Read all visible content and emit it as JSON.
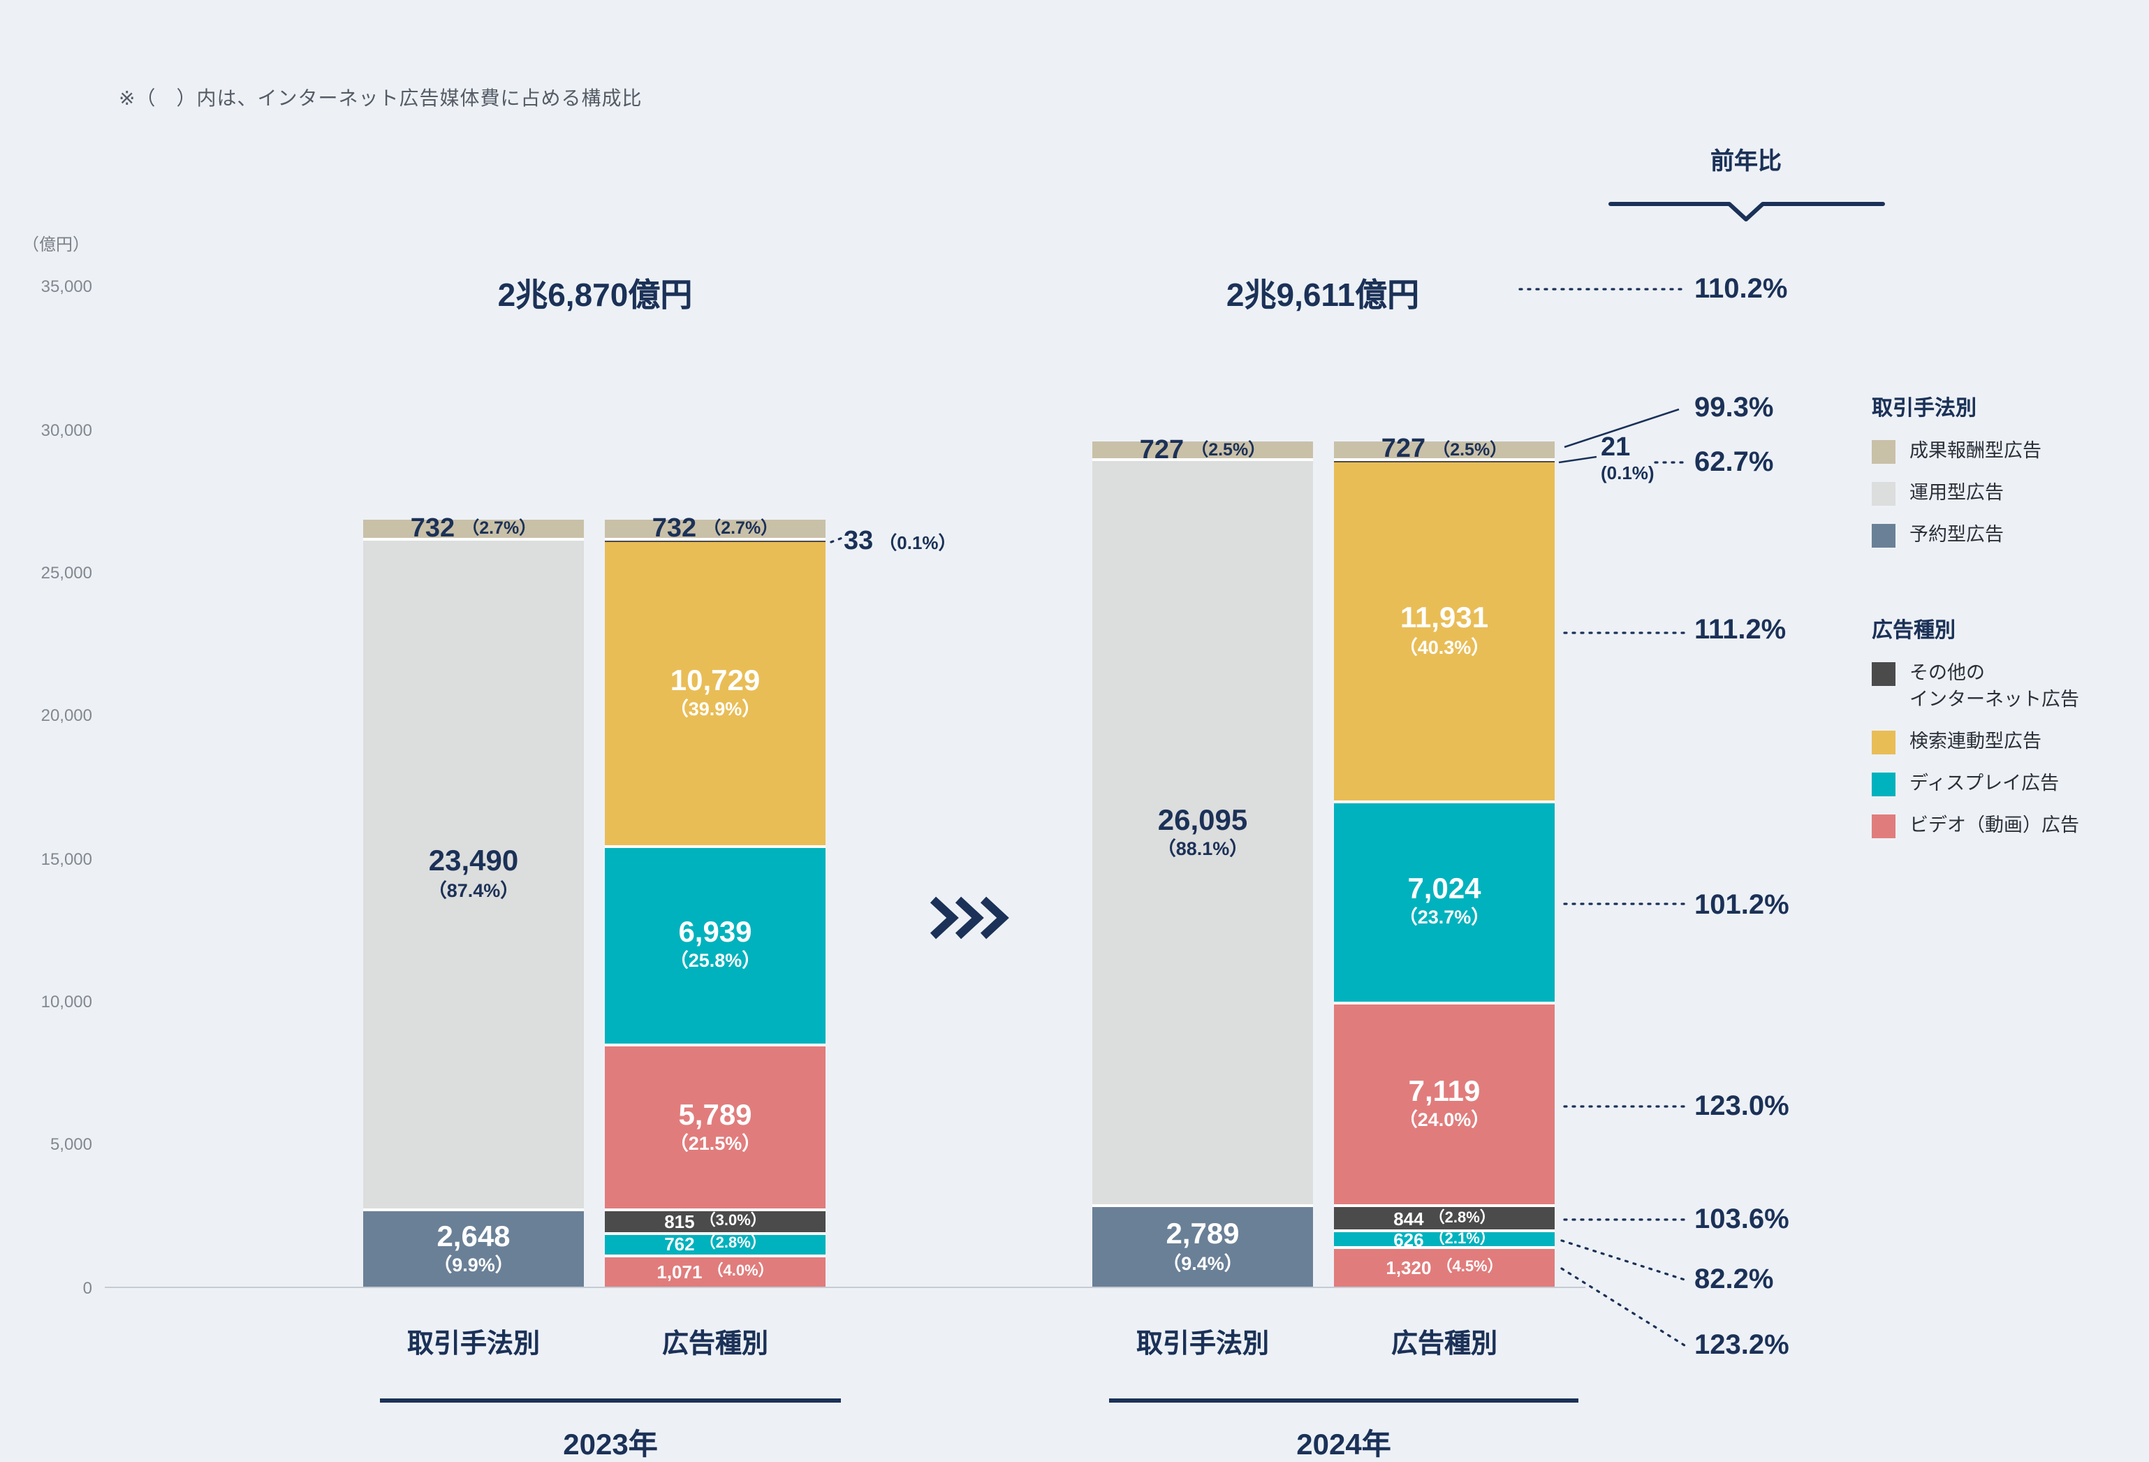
{
  "note": "※（　）内は、インターネット広告媒体費に占める構成比",
  "unit_label": "（億円）",
  "yoy_header": "前年比",
  "colors": {
    "background": "#edf1f6",
    "navy": "#1b3157",
    "performance_beige": "#c9c0a8",
    "programmatic_gray": "#dcdddd",
    "reserved_bluegray": "#6a8097",
    "other_darkgray": "#4b4b4b",
    "search_yellow": "#e9bd56",
    "display_teal": "#00b2bd",
    "video_red": "#e17c7c"
  },
  "chart_data": {
    "type": "bar",
    "stacked": true,
    "unit": "億円",
    "y_axis": {
      "max": 35000,
      "ticks": [
        35000,
        30000,
        25000,
        20000,
        15000,
        10000,
        5000,
        0
      ],
      "tick_labels": [
        "35,000",
        "30,000",
        "25,000",
        "20,000",
        "15,000",
        "10,000",
        "5,000",
        "0"
      ]
    },
    "groups": [
      {
        "year": "2023年",
        "total": 26870,
        "total_label": "2兆6,870億円",
        "bars": [
          {
            "label": "取引手法別",
            "segments": [
              {
                "key": "reserved-ads",
                "name": "予約型広告",
                "value": 2648,
                "value_label": "2,648",
                "share": "（9.9%）",
                "color": "reserved_bluegray",
                "text_color": "#ffffff",
                "style": "two-line"
              },
              {
                "key": "programmatic-ads",
                "name": "運用型広告",
                "value": 23490,
                "value_label": "23,490",
                "share": "（87.4%）",
                "color": "programmatic_gray",
                "text_color": "#1b3157",
                "style": "two-line"
              },
              {
                "key": "performance-ads",
                "name": "成果報酬型広告",
                "value": 732,
                "value_label": "732",
                "share": "（2.7%）",
                "color": "performance_beige",
                "text_color": "#1b3157",
                "style": "one-line"
              }
            ]
          },
          {
            "label": "広告種別",
            "segments": [
              {
                "key": "video-ads-reserved",
                "name": "ビデオ（動画）広告",
                "value": 1071,
                "value_label": "1,071",
                "share": "（4.0%）",
                "color": "video_red",
                "text_color": "#ffffff",
                "style": "one-line-small"
              },
              {
                "key": "display-ads-reserved",
                "name": "ディスプレイ広告",
                "value": 762,
                "value_label": "762",
                "share": "（2.8%）",
                "color": "display_teal",
                "text_color": "#ffffff",
                "style": "one-line-small"
              },
              {
                "key": "other-ads-reserved",
                "name": "その他のインターネット広告",
                "value": 815,
                "value_label": "815",
                "share": "（3.0%）",
                "color": "other_darkgray",
                "text_color": "#ffffff",
                "style": "one-line-small"
              },
              {
                "key": "video-ads",
                "name": "ビデオ（動画）広告",
                "value": 5789,
                "value_label": "5,789",
                "share": "（21.5%）",
                "color": "video_red",
                "text_color": "#ffffff",
                "style": "two-line"
              },
              {
                "key": "display-ads",
                "name": "ディスプレイ広告",
                "value": 6939,
                "value_label": "6,939",
                "share": "（25.8%）",
                "color": "display_teal",
                "text_color": "#ffffff",
                "style": "two-line"
              },
              {
                "key": "search-ads",
                "name": "検索連動型広告",
                "value": 10729,
                "value_label": "10,729",
                "share": "（39.9%）",
                "color": "search_yellow",
                "text_color": "#ffffff",
                "style": "two-line"
              },
              {
                "key": "other-ads",
                "name": "その他のインターネット広告",
                "value": 33,
                "value_label": "33",
                "share": "（0.1%）",
                "color": "other_darkgray",
                "style": "hidden"
              },
              {
                "key": "performance-ads",
                "name": "成果報酬型広告",
                "value": 732,
                "value_label": "732",
                "share": "（2.7%）",
                "color": "performance_beige",
                "text_color": "#1b3157",
                "style": "one-line"
              }
            ]
          }
        ]
      },
      {
        "year": "2024年",
        "total": 29611,
        "total_label": "2兆9,611億円",
        "bars": [
          {
            "label": "取引手法別",
            "segments": [
              {
                "key": "reserved-ads",
                "name": "予約型広告",
                "value": 2789,
                "value_label": "2,789",
                "share": "（9.4%）",
                "color": "reserved_bluegray",
                "text_color": "#ffffff",
                "style": "two-line"
              },
              {
                "key": "programmatic-ads",
                "name": "運用型広告",
                "value": 26095,
                "value_label": "26,095",
                "share": "（88.1%）",
                "color": "programmatic_gray",
                "text_color": "#1b3157",
                "style": "two-line"
              },
              {
                "key": "performance-ads",
                "name": "成果報酬型広告",
                "value": 727,
                "value_label": "727",
                "share": "（2.5%）",
                "color": "performance_beige",
                "text_color": "#1b3157",
                "style": "one-line"
              }
            ]
          },
          {
            "label": "広告種別",
            "segments": [
              {
                "key": "video-ads-reserved",
                "name": "ビデオ（動画）広告",
                "value": 1320,
                "value_label": "1,320",
                "share": "（4.5%）",
                "color": "video_red",
                "text_color": "#ffffff",
                "style": "one-line-small"
              },
              {
                "key": "display-ads-reserved",
                "name": "ディスプレイ広告",
                "value": 626,
                "value_label": "626",
                "share": "（2.1%）",
                "color": "display_teal",
                "text_color": "#ffffff",
                "style": "one-line-small"
              },
              {
                "key": "other-ads-reserved",
                "name": "その他のインターネット広告",
                "value": 844,
                "value_label": "844",
                "share": "（2.8%）",
                "color": "other_darkgray",
                "text_color": "#ffffff",
                "style": "one-line-small"
              },
              {
                "key": "video-ads",
                "name": "ビデオ（動画）広告",
                "value": 7119,
                "value_label": "7,119",
                "share": "（24.0%）",
                "color": "video_red",
                "text_color": "#ffffff",
                "style": "two-line"
              },
              {
                "key": "display-ads",
                "name": "ディスプレイ広告",
                "value": 7024,
                "value_label": "7,024",
                "share": "（23.7%）",
                "color": "display_teal",
                "text_color": "#ffffff",
                "style": "two-line"
              },
              {
                "key": "search-ads",
                "name": "検索連動型広告",
                "value": 11931,
                "value_label": "11,931",
                "share": "（40.3%）",
                "color": "search_yellow",
                "text_color": "#ffffff",
                "style": "two-line"
              },
              {
                "key": "other-ads",
                "name": "その他のインターネット広告",
                "value": 21,
                "value_label": "21",
                "share": "(0.1%)",
                "color": "other_darkgray",
                "style": "hidden"
              },
              {
                "key": "performance-ads",
                "name": "成果報酬型広告",
                "value": 727,
                "value_label": "727",
                "share": "（2.5%）",
                "color": "performance_beige",
                "text_color": "#1b3157",
                "style": "one-line"
              }
            ]
          }
        ]
      }
    ],
    "yoy": {
      "total": "110.2%",
      "items": [
        {
          "name": "成果報酬型広告",
          "label": "99.3%"
        },
        {
          "name": "その他のインターネット広告（運用型）",
          "label": "62.7%"
        },
        {
          "name": "検索連動型広告",
          "label": "111.2%"
        },
        {
          "name": "ディスプレイ広告（運用型）",
          "label": "101.2%"
        },
        {
          "name": "ビデオ（動画）広告（運用型）",
          "label": "123.0%"
        },
        {
          "name": "その他のインターネット広告（予約型）",
          "label": "103.6%"
        },
        {
          "name": "ディスプレイ広告（予約型）",
          "label": "82.2%"
        },
        {
          "name": "ビデオ（動画）広告（予約型）",
          "label": "123.2%"
        }
      ]
    },
    "callouts": {
      "c33": {
        "value_label": "33",
        "share": "（0.1%）"
      },
      "c21": {
        "value_label": "21",
        "share": "(0.1%)"
      }
    }
  },
  "legend": {
    "method": {
      "title": "取引手法別",
      "items": [
        {
          "label": "成果報酬型広告",
          "color": "performance_beige"
        },
        {
          "label": "運用型広告",
          "color": "programmatic_gray"
        },
        {
          "label": "予約型広告",
          "color": "reserved_bluegray"
        }
      ]
    },
    "type": {
      "title": "広告種別",
      "items": [
        {
          "label": "その他のインターネット広告",
          "lines": [
            "その他の",
            "インターネット広告"
          ],
          "color": "other_darkgray"
        },
        {
          "label": "検索連動型広告",
          "color": "search_yellow"
        },
        {
          "label": "ディスプレイ広告",
          "color": "display_teal"
        },
        {
          "label": "ビデオ（動画）広告",
          "color": "video_red"
        }
      ]
    }
  }
}
